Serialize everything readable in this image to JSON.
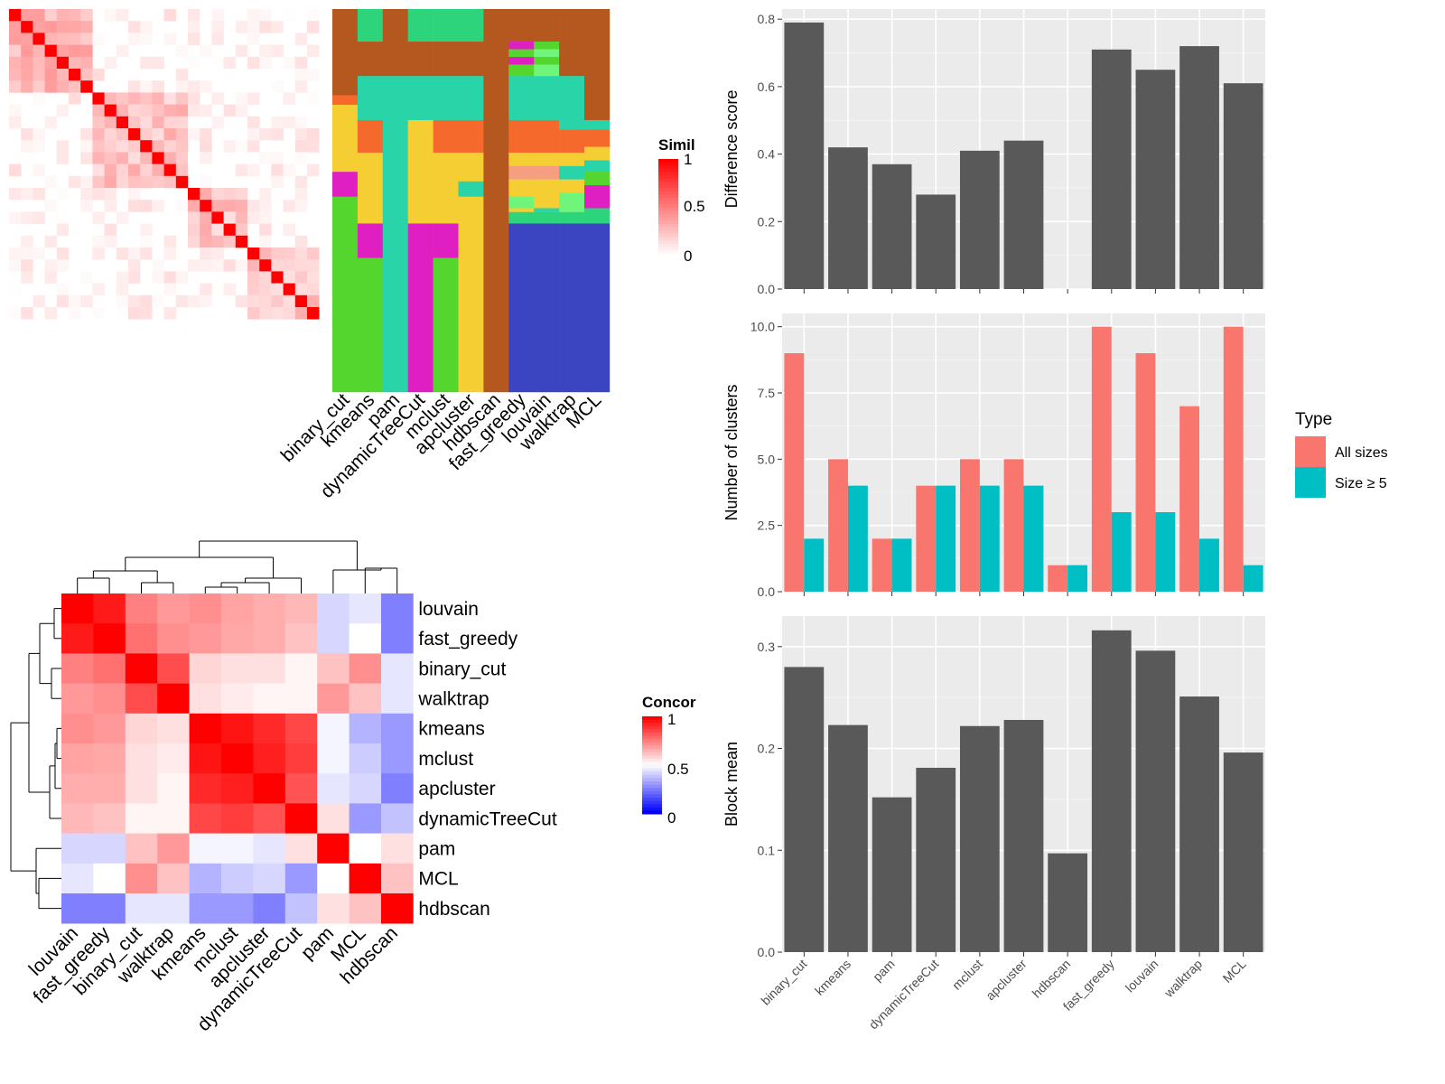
{
  "methods": [
    "binary_cut",
    "kmeans",
    "pam",
    "dynamicTreeCut",
    "mclust",
    "apcluster",
    "hdbscan",
    "fast_greedy",
    "louvain",
    "walktrap",
    "MCL"
  ],
  "similarity_panel": {
    "legend_title": "Similarity",
    "legend_ticks": [
      "1",
      "0.5",
      "0"
    ],
    "colors": {
      "high": "#ff0000",
      "low": "#ffffff"
    }
  },
  "partition_panel": {
    "palette": [
      "#b5581f",
      "#2ed47b",
      "#28d4a8",
      "#f56a2c",
      "#f5ce33",
      "#e01fc3",
      "#55d62e",
      "#6ff57a",
      "#f59f80",
      "#3b45c2"
    ],
    "columns": [
      [
        [
          0,
          0
        ],
        [
          3,
          45
        ],
        [
          4,
          50
        ],
        [
          5,
          85
        ],
        [
          6,
          98
        ],
        [
          7,
          200
        ],
        [
          8,
          265
        ]
      ],
      [
        [
          1,
          0
        ],
        [
          0,
          17
        ],
        [
          2,
          35
        ],
        [
          3,
          58
        ],
        [
          4,
          75
        ],
        [
          5,
          112
        ],
        [
          6,
          130
        ],
        [
          8,
          200
        ]
      ],
      [
        [
          0,
          0
        ],
        [
          2,
          35
        ],
        [
          8,
          200
        ]
      ],
      [
        [
          1,
          0
        ],
        [
          0,
          17
        ],
        [
          2,
          35
        ],
        [
          4,
          58
        ],
        [
          5,
          112
        ],
        [
          6,
          200
        ]
      ],
      [
        [
          1,
          0
        ],
        [
          0,
          17
        ],
        [
          2,
          35
        ],
        [
          3,
          58
        ],
        [
          4,
          75
        ],
        [
          5,
          112
        ],
        [
          6,
          130
        ],
        [
          8,
          200
        ]
      ],
      [
        [
          1,
          0
        ],
        [
          0,
          17
        ],
        [
          2,
          35
        ],
        [
          3,
          58
        ],
        [
          4,
          75
        ],
        [
          2,
          90
        ],
        [
          4,
          98
        ],
        [
          8,
          200
        ]
      ],
      [
        [
          0,
          0
        ],
        [
          9,
          200
        ]
      ],
      [
        [
          0,
          0
        ],
        [
          5,
          17
        ],
        [
          6,
          21
        ],
        [
          5,
          25
        ],
        [
          6,
          29
        ],
        [
          0,
          35
        ],
        [
          2,
          35
        ],
        [
          3,
          58
        ],
        [
          4,
          75
        ],
        [
          8,
          82
        ],
        [
          4,
          89
        ],
        [
          7,
          98
        ],
        [
          4,
          104
        ],
        [
          1,
          106
        ],
        [
          9,
          112
        ],
        [
          9,
          200
        ]
      ],
      [
        [
          0,
          0
        ],
        [
          6,
          17
        ],
        [
          7,
          21
        ],
        [
          6,
          25
        ],
        [
          7,
          29
        ],
        [
          0,
          35
        ],
        [
          2,
          35
        ],
        [
          3,
          58
        ],
        [
          4,
          75
        ],
        [
          8,
          82
        ],
        [
          4,
          89
        ],
        [
          2,
          104
        ],
        [
          1,
          106
        ],
        [
          9,
          112
        ],
        [
          9,
          200
        ]
      ],
      [
        [
          0,
          0
        ],
        [
          2,
          35
        ],
        [
          3,
          63
        ],
        [
          4,
          75
        ],
        [
          2,
          82
        ],
        [
          4,
          89
        ],
        [
          7,
          96
        ],
        [
          1,
          106
        ],
        [
          9,
          112
        ],
        [
          9,
          200
        ]
      ],
      [
        [
          0,
          0
        ],
        [
          2,
          58
        ],
        [
          3,
          63
        ],
        [
          4,
          72
        ],
        [
          2,
          79
        ],
        [
          6,
          85
        ],
        [
          5,
          92
        ],
        [
          1,
          104
        ],
        [
          9,
          112
        ],
        [
          9,
          200
        ]
      ]
    ]
  },
  "concordance_panel": {
    "legend_title": "Concordance",
    "legend_ticks": [
      "1",
      "0.5",
      "0"
    ],
    "order": [
      "louvain",
      "fast_greedy",
      "binary_cut",
      "walktrap",
      "kmeans",
      "mclust",
      "apcluster",
      "dynamicTreeCut",
      "pam",
      "MCL",
      "hdbscan"
    ],
    "matrix": [
      [
        1.0,
        0.95,
        0.75,
        0.7,
        0.72,
        0.68,
        0.66,
        0.64,
        0.42,
        0.45,
        0.25
      ],
      [
        0.95,
        1.0,
        0.78,
        0.72,
        0.7,
        0.67,
        0.66,
        0.62,
        0.42,
        0.5,
        0.25
      ],
      [
        0.75,
        0.78,
        1.0,
        0.85,
        0.58,
        0.56,
        0.56,
        0.52,
        0.62,
        0.72,
        0.45
      ],
      [
        0.7,
        0.72,
        0.85,
        1.0,
        0.56,
        0.54,
        0.52,
        0.52,
        0.7,
        0.62,
        0.45
      ],
      [
        0.72,
        0.7,
        0.58,
        0.56,
        1.0,
        0.96,
        0.92,
        0.86,
        0.48,
        0.35,
        0.3
      ],
      [
        0.68,
        0.67,
        0.56,
        0.54,
        0.96,
        1.0,
        0.94,
        0.88,
        0.48,
        0.4,
        0.3
      ],
      [
        0.66,
        0.66,
        0.56,
        0.52,
        0.92,
        0.94,
        1.0,
        0.84,
        0.45,
        0.42,
        0.25
      ],
      [
        0.64,
        0.62,
        0.52,
        0.52,
        0.86,
        0.88,
        0.84,
        1.0,
        0.56,
        0.3,
        0.38
      ],
      [
        0.42,
        0.42,
        0.62,
        0.7,
        0.48,
        0.48,
        0.45,
        0.56,
        1.0,
        0.5,
        0.56
      ],
      [
        0.45,
        0.5,
        0.72,
        0.62,
        0.35,
        0.4,
        0.42,
        0.3,
        0.5,
        1.0,
        0.62
      ],
      [
        0.25,
        0.25,
        0.45,
        0.45,
        0.3,
        0.3,
        0.25,
        0.38,
        0.56,
        0.62,
        1.0
      ]
    ]
  },
  "chart_data": [
    {
      "type": "bar",
      "categories": [
        "binary_cut",
        "kmeans",
        "pam",
        "dynamicTreeCut",
        "mclust",
        "apcluster",
        "hdbscan",
        "fast_greedy",
        "louvain",
        "walktrap",
        "MCL"
      ],
      "values": [
        0.79,
        0.42,
        0.37,
        0.28,
        0.41,
        0.44,
        null,
        0.71,
        0.65,
        0.72,
        0.61
      ],
      "ylabel": "Difference score",
      "ylim": [
        0,
        0.83
      ],
      "yticks": [
        0.0,
        0.2,
        0.4,
        0.6,
        0.8
      ],
      "ytick_labels": [
        "0.0",
        "0.2",
        "0.4",
        "0.6",
        "0.8"
      ],
      "grid": true
    },
    {
      "type": "bar",
      "categories": [
        "binary_cut",
        "kmeans",
        "pam",
        "dynamicTreeCut",
        "mclust",
        "apcluster",
        "hdbscan",
        "fast_greedy",
        "louvain",
        "walktrap",
        "MCL"
      ],
      "series": [
        {
          "name": "All sizes",
          "values": [
            9,
            5,
            2,
            4,
            5,
            5,
            1,
            10,
            9,
            7,
            10
          ],
          "color": "#f8766d"
        },
        {
          "name": "Size ≥ 5",
          "values": [
            2,
            4,
            2,
            4,
            4,
            4,
            1,
            3,
            3,
            2,
            1
          ],
          "color": "#00bfc4"
        }
      ],
      "ylabel": "Number of clusters",
      "ylim": [
        0,
        10.5
      ],
      "yticks": [
        0,
        2.5,
        5,
        7.5,
        10
      ],
      "ytick_labels": [
        "0.0",
        "2.5",
        "5.0",
        "7.5",
        "10.0"
      ],
      "legend": {
        "title": "Type",
        "position": "right"
      },
      "grid": true
    },
    {
      "type": "bar",
      "categories": [
        "binary_cut",
        "kmeans",
        "pam",
        "dynamicTreeCut",
        "mclust",
        "apcluster",
        "hdbscan",
        "fast_greedy",
        "louvain",
        "walktrap",
        "MCL"
      ],
      "values": [
        0.28,
        0.223,
        0.152,
        0.181,
        0.222,
        0.228,
        0.097,
        0.316,
        0.296,
        0.251,
        0.196
      ],
      "ylabel": "Block mean",
      "ylim": [
        0,
        0.33
      ],
      "yticks": [
        0.0,
        0.1,
        0.2,
        0.3
      ],
      "ytick_labels": [
        "0.0",
        "0.1",
        "0.2",
        "0.3"
      ],
      "grid": true
    }
  ]
}
